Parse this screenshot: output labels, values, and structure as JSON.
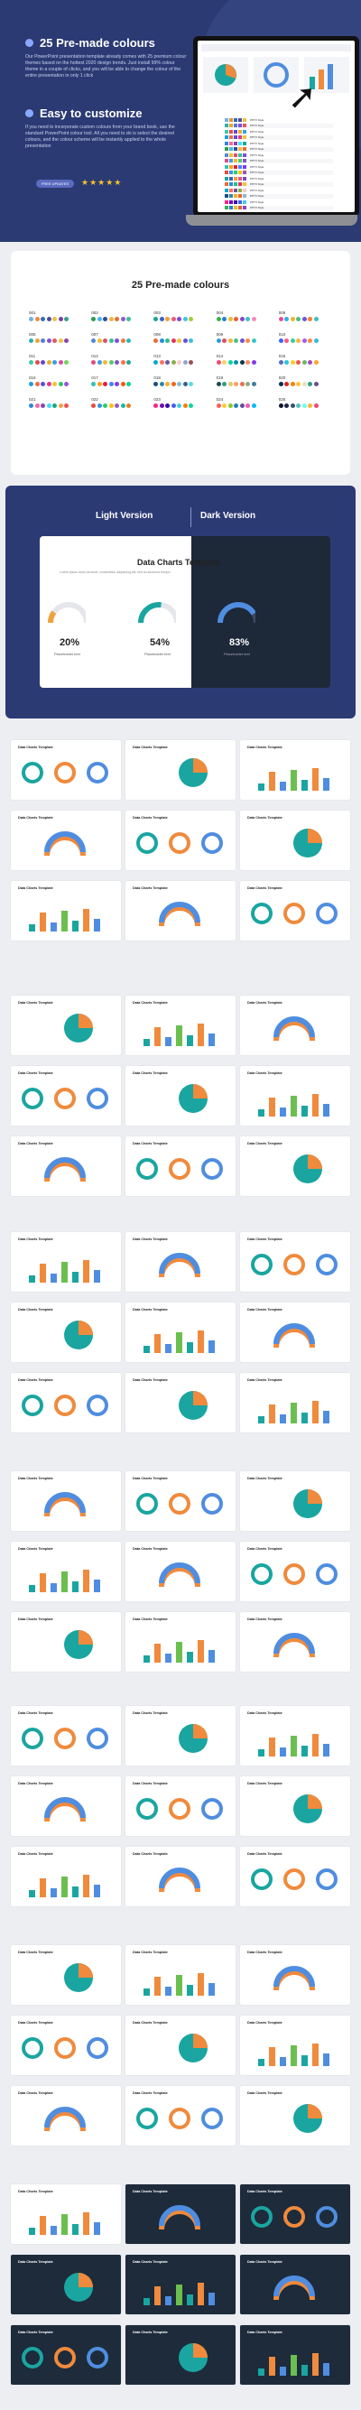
{
  "hero": {
    "heading1": "25 Pre-made colours",
    "para1": "Our PowerPoint presentation template already comes with 25 premium colour themes based on the hottest 2020 design trends. Just install 99% colour theme in a couple of clicks, and you will be able to change the colour of the entire presentation in only 1 click",
    "heading2": "Easy to customize",
    "para2": "If you need to incorporate custom colours from your brand book, use the standard PowerPoint colour tool. All you need to do is select the desired colours, and the colour scheme will be instantly applied to the whole presentation",
    "badge": "FREE UPDATES",
    "stars": "★★★★★"
  },
  "palette_label": "PPTX Style",
  "colours_section": {
    "title": "25 Pre-made colours",
    "items": [
      {
        "id": "001",
        "colors": [
          "#6fb3e0",
          "#f08a3c",
          "#2c6fb3",
          "#4c4c9e",
          "#e8c547",
          "#7c3fa0",
          "#3d9e8e"
        ]
      },
      {
        "id": "006",
        "colors": [
          "#2cb1b5",
          "#f0a32c",
          "#4f7de0",
          "#7e4fd9",
          "#e25b5b",
          "#f6c243",
          "#8f44ad"
        ]
      },
      {
        "id": "011",
        "colors": [
          "#3ec9a7",
          "#e44b4b",
          "#5a4ad1",
          "#f2aa2d",
          "#2fa5e0",
          "#d84ea3",
          "#70d25b"
        ]
      },
      {
        "id": "016",
        "colors": [
          "#1b9ee0",
          "#ef6c3d",
          "#5d4fcf",
          "#e0378f",
          "#f4c233",
          "#31c26e",
          "#9c4fd9"
        ]
      },
      {
        "id": "021",
        "colors": [
          "#2e86de",
          "#f368a0",
          "#8e44ad",
          "#48dbfb",
          "#10ac84",
          "#ff9f43",
          "#ee5253"
        ]
      },
      {
        "id": "002",
        "colors": [
          "#2d9c4b",
          "#4bb4e6",
          "#274f9c",
          "#f2b53d",
          "#e5702e",
          "#8b5bd1",
          "#3cc09d"
        ]
      },
      {
        "id": "007",
        "colors": [
          "#4f89e0",
          "#f0c02c",
          "#e04f6e",
          "#34c38f",
          "#7b4fe0",
          "#ef7a32",
          "#2ab5c4"
        ]
      },
      {
        "id": "012",
        "colors": [
          "#e54b84",
          "#3aa0e2",
          "#f7b733",
          "#58c76a",
          "#7e57c2",
          "#ff7043",
          "#26a69a"
        ]
      },
      {
        "id": "017",
        "colors": [
          "#2ec4b6",
          "#ff9f1c",
          "#e71d36",
          "#3a86ff",
          "#8338ec",
          "#fb5607",
          "#06d6a0"
        ]
      },
      {
        "id": "022",
        "colors": [
          "#e74c3c",
          "#3498db",
          "#2ecc71",
          "#f1c40f",
          "#9b59b6",
          "#1abc9c",
          "#e67e22"
        ]
      },
      {
        "id": "003",
        "colors": [
          "#1aa39a",
          "#3b5fc4",
          "#f39c35",
          "#e25b7e",
          "#7d4bc9",
          "#44c1e6",
          "#a4c93d"
        ]
      },
      {
        "id": "008",
        "colors": [
          "#f06c2f",
          "#1f8ee0",
          "#2cc08a",
          "#e0365f",
          "#f7c23a",
          "#6c4bd9",
          "#3dbfd6"
        ]
      },
      {
        "id": "013",
        "colors": [
          "#00a8cc",
          "#ff6f61",
          "#6b5b95",
          "#88b04b",
          "#f7cac9",
          "#92a8d1",
          "#955251"
        ]
      },
      {
        "id": "018",
        "colors": [
          "#1f4e79",
          "#2e86ab",
          "#f6ae2d",
          "#f26419",
          "#86bbd8",
          "#33658a",
          "#55dde0"
        ]
      },
      {
        "id": "023",
        "colors": [
          "#f72585",
          "#7209b7",
          "#3a0ca3",
          "#4361ee",
          "#4cc9f0",
          "#f77f00",
          "#06d6a0"
        ]
      },
      {
        "id": "004",
        "colors": [
          "#37b34a",
          "#2a7fd4",
          "#e6bf2c",
          "#e45f3a",
          "#8348c4",
          "#39c1c9",
          "#f08bb6"
        ]
      },
      {
        "id": "009",
        "colors": [
          "#2b9de0",
          "#e44c65",
          "#f7b538",
          "#4bbf8b",
          "#6f4dd8",
          "#ff8a3d",
          "#36c5d1"
        ]
      },
      {
        "id": "014",
        "colors": [
          "#ef476f",
          "#ffd166",
          "#06d6a0",
          "#118ab2",
          "#073b4c",
          "#f78c6b",
          "#8338ec"
        ]
      },
      {
        "id": "019",
        "colors": [
          "#264653",
          "#2a9d8f",
          "#e9c46a",
          "#f4a261",
          "#e76f51",
          "#8ab17d",
          "#457b9d"
        ]
      },
      {
        "id": "024",
        "colors": [
          "#ff595e",
          "#ffca3a",
          "#8ac926",
          "#1982c4",
          "#6a4c93",
          "#f15bb5",
          "#00bbf9"
        ]
      },
      {
        "id": "005",
        "colors": [
          "#e04e9b",
          "#2fb0e4",
          "#f3b02f",
          "#43c27d",
          "#7453d4",
          "#ff7b36",
          "#3dbfbf"
        ]
      },
      {
        "id": "010",
        "colors": [
          "#3861fb",
          "#fa5a7d",
          "#2ed1a2",
          "#fcb53b",
          "#a45ce8",
          "#ff8b3d",
          "#36b9e0"
        ]
      },
      {
        "id": "015",
        "colors": [
          "#5c6bc0",
          "#26c6da",
          "#ffca28",
          "#ef5350",
          "#66bb6a",
          "#ab47bc",
          "#ffa726"
        ]
      },
      {
        "id": "020",
        "colors": [
          "#003049",
          "#d62828",
          "#f77f00",
          "#fcbf49",
          "#eae2b7",
          "#2a9d8f",
          "#6a4c93"
        ]
      },
      {
        "id": "025",
        "colors": [
          "#0b132b",
          "#1c2541",
          "#3a506b",
          "#5bc0be",
          "#6fffe9",
          "#f7b538",
          "#ef476f"
        ]
      }
    ]
  },
  "versions": {
    "light_label": "Light Version",
    "dark_label": "Dark Version",
    "card_title": "Data Charts Template",
    "card_sub": "Lorem ipsum dolor sit amet, consectetur adipiscing elit, sed do eiusmod tempor",
    "gauges": [
      {
        "pct": "20%",
        "label": "Placeholder text",
        "value": 0.2,
        "theme": "light",
        "color": "#f0a13b"
      },
      {
        "pct": "54%",
        "label": "Placeholder text",
        "value": 0.54,
        "theme": "split",
        "color": "#1aa5a0"
      },
      {
        "pct": "83%",
        "label": "Placeholder text",
        "value": 0.83,
        "theme": "dark",
        "color": "#4f8de0"
      }
    ]
  },
  "thumb_title": "Data Charts Template"
}
